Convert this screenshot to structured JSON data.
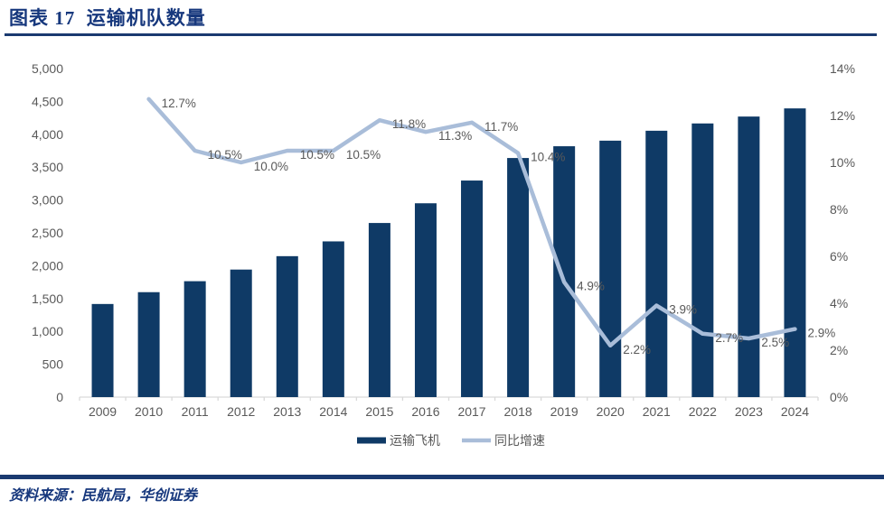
{
  "header": {
    "title": "图表 17  运输机队数量"
  },
  "footer": {
    "source": "资料来源：民航局，华创证券"
  },
  "theme": {
    "title_color": "#17387d",
    "rule_color": "#1a3a70"
  },
  "chart_data": {
    "type": "bar+line",
    "title": "运输机队数量",
    "categories": [
      "2009",
      "2010",
      "2011",
      "2012",
      "2013",
      "2014",
      "2015",
      "2016",
      "2017",
      "2018",
      "2019",
      "2020",
      "2021",
      "2022",
      "2023",
      "2024"
    ],
    "series": [
      {
        "name": "运输飞机",
        "type": "bar",
        "axis": "left",
        "values": [
          1417,
          1597,
          1764,
          1941,
          2145,
          2370,
          2650,
          2950,
          3296,
          3639,
          3818,
          3903,
          4054,
          4165,
          4270,
          4394
        ]
      },
      {
        "name": "同比增速",
        "type": "line",
        "axis": "right",
        "values": [
          null,
          12.7,
          10.5,
          10.0,
          10.5,
          10.5,
          11.8,
          11.3,
          11.7,
          10.4,
          4.9,
          2.2,
          3.9,
          2.7,
          2.5,
          2.9
        ],
        "labels": [
          "",
          "12.7%",
          "10.5%",
          "10.0%",
          "10.5%",
          "10.5%",
          "11.8%",
          "11.3%",
          "11.7%",
          "10.4%",
          "4.9%",
          "2.2%",
          "3.9%",
          "2.7%",
          "2.5%",
          "2.9%"
        ]
      }
    ],
    "left_axis": {
      "min": 0,
      "max": 5000,
      "step": 500,
      "tick_labels": [
        "0",
        "500",
        "1,000",
        "1,500",
        "2,000",
        "2,500",
        "3,000",
        "3,500",
        "4,000",
        "4,500",
        "5,000"
      ]
    },
    "right_axis": {
      "min": 0,
      "max": 14,
      "step": 2,
      "tick_labels": [
        "0%",
        "2%",
        "4%",
        "6%",
        "8%",
        "10%",
        "12%",
        "14%"
      ]
    },
    "gridlines": false,
    "legend_position": "bottom",
    "colors": {
      "bar": "#0f3a66",
      "line": "#a9bdd9",
      "axis_text": "#595959",
      "label_text": "#595959",
      "axis_line": "#d9d9d9"
    }
  }
}
